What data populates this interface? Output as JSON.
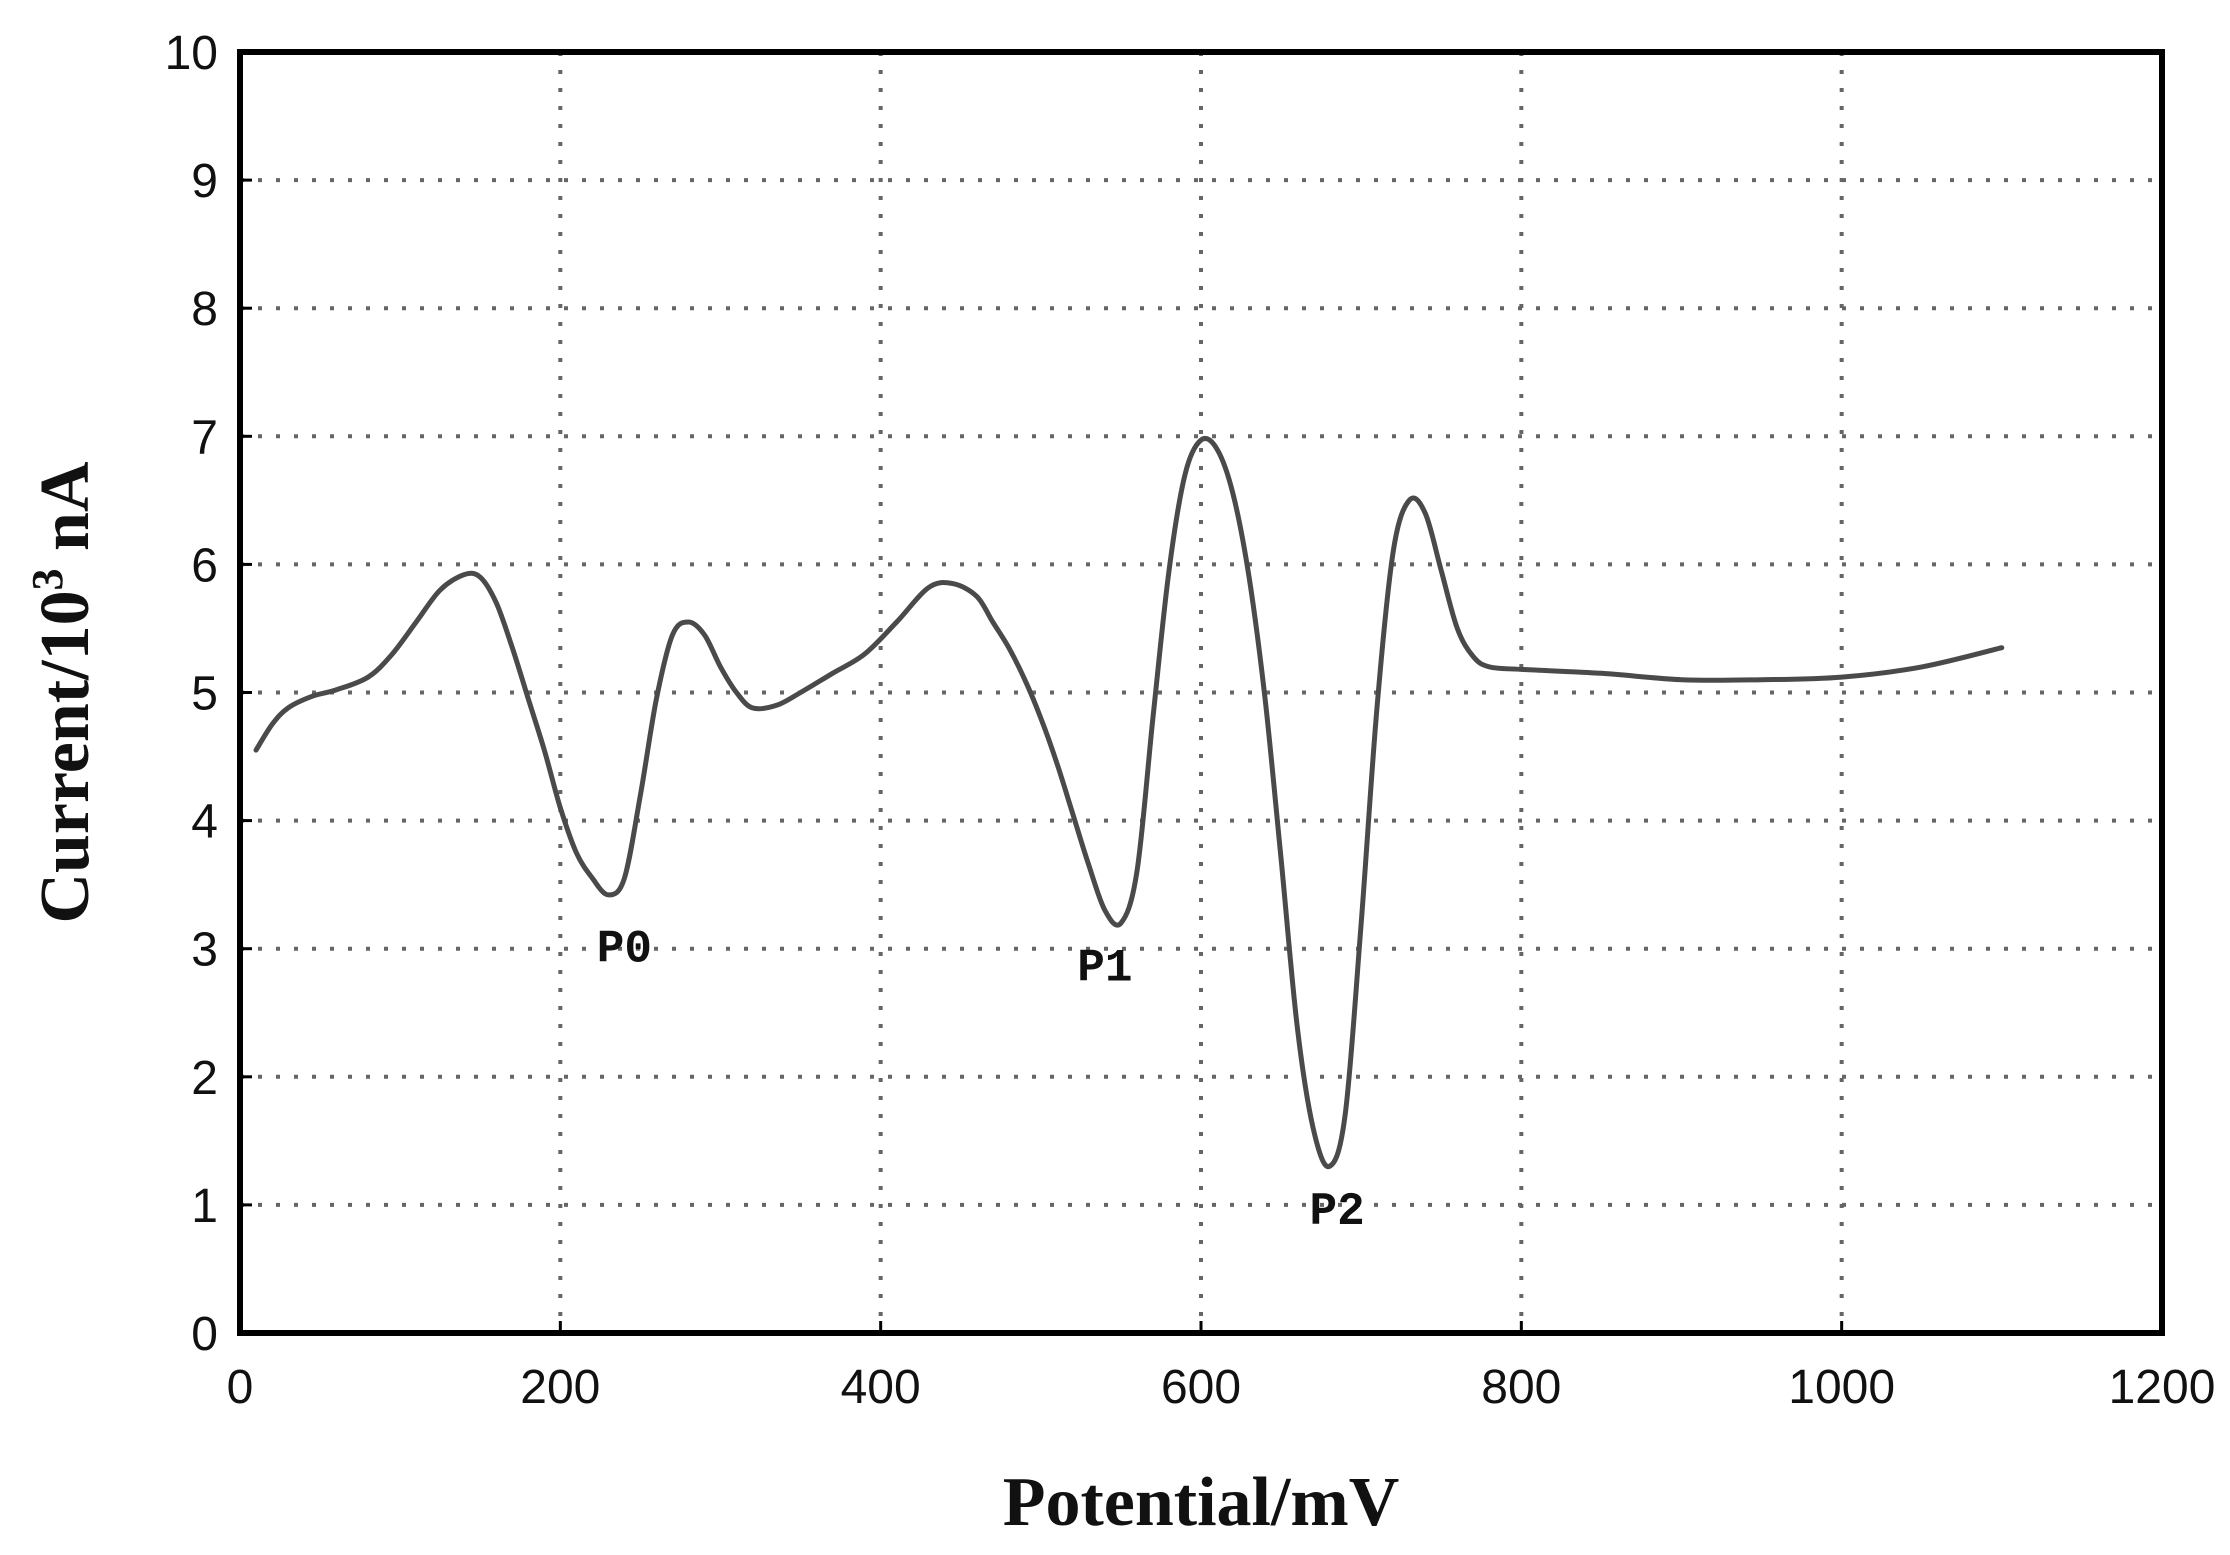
{
  "chart_data": {
    "type": "line",
    "title": "",
    "xlabel": "Potential/mV",
    "ylabel": {
      "prefix": "Current/10",
      "superscript": "3",
      "suffix": " nA"
    },
    "xlim": [
      0,
      1200
    ],
    "ylim": [
      0,
      10
    ],
    "xticks": [
      0,
      200,
      400,
      600,
      800,
      1000,
      1200
    ],
    "yticks": [
      0,
      1,
      2,
      3,
      4,
      5,
      6,
      7,
      8,
      9,
      10
    ],
    "grid": true,
    "grid_style": "dotted",
    "line_color": "#4a4a4a",
    "series": [
      {
        "x": [
          10,
          20,
          30,
          45,
          60,
          80,
          95,
          110,
          125,
          140,
          150,
          160,
          170,
          180,
          190,
          200,
          210,
          220,
          230,
          240,
          250,
          260,
          270,
          280,
          290,
          300,
          310,
          320,
          335,
          350,
          370,
          390,
          410,
          430,
          445,
          460,
          470,
          480,
          490,
          500,
          510,
          520,
          530,
          540,
          550,
          560,
          570,
          580,
          590,
          600,
          610,
          620,
          630,
          640,
          650,
          660,
          670,
          680,
          690,
          700,
          710,
          720,
          730,
          740,
          750,
          760,
          770,
          780,
          800,
          850,
          900,
          950,
          1000,
          1050,
          1100
        ],
        "y": [
          4.55,
          4.75,
          4.88,
          4.97,
          5.02,
          5.12,
          5.3,
          5.55,
          5.8,
          5.92,
          5.9,
          5.7,
          5.35,
          4.95,
          4.55,
          4.1,
          3.75,
          3.55,
          3.42,
          3.55,
          4.2,
          4.95,
          5.45,
          5.55,
          5.45,
          5.2,
          5.0,
          4.88,
          4.9,
          5.0,
          5.15,
          5.3,
          5.55,
          5.82,
          5.85,
          5.75,
          5.55,
          5.35,
          5.1,
          4.8,
          4.45,
          4.05,
          3.65,
          3.3,
          3.2,
          3.6,
          4.8,
          5.95,
          6.7,
          6.97,
          6.9,
          6.55,
          5.9,
          4.95,
          3.7,
          2.4,
          1.6,
          1.3,
          1.7,
          3.2,
          4.9,
          6.1,
          6.5,
          6.4,
          5.95,
          5.5,
          5.28,
          5.2,
          5.18,
          5.15,
          5.1,
          5.1,
          5.12,
          5.2,
          5.35
        ]
      }
    ],
    "annotations": [
      {
        "text": "P0",
        "x": 240,
        "y": 2.9
      },
      {
        "text": "P1",
        "x": 540,
        "y": 2.75
      },
      {
        "text": "P2",
        "x": 685,
        "y": 0.85
      }
    ]
  }
}
